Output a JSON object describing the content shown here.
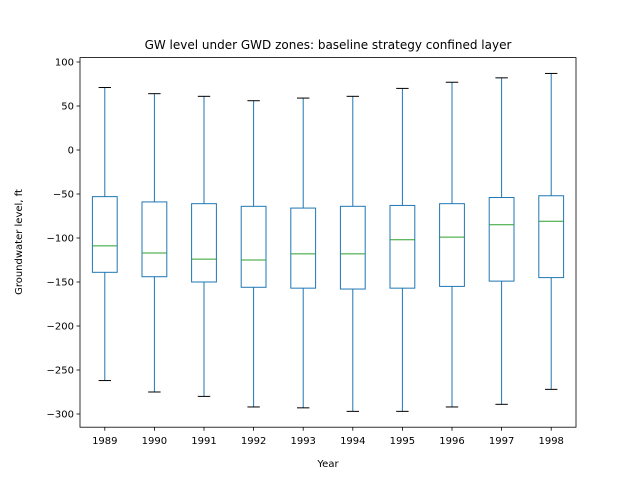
{
  "chart_data": {
    "type": "box",
    "title": "GW level under GWD zones: baseline strategy confined layer",
    "xlabel": "Year",
    "ylabel": "Groundwater level, ft",
    "ylim": [
      -315,
      105
    ],
    "yticks": [
      100,
      50,
      0,
      -50,
      -100,
      -150,
      -200,
      -250,
      -300
    ],
    "ytick_labels": [
      "100",
      "50",
      "0",
      "−50",
      "−100",
      "−150",
      "−200",
      "−250",
      "−300"
    ],
    "grid": false,
    "categories": [
      "1989",
      "1990",
      "1991",
      "1992",
      "1993",
      "1994",
      "1995",
      "1996",
      "1997",
      "1998"
    ],
    "boxes": [
      {
        "whislo": -262,
        "q1": -139,
        "med": -109,
        "q3": -53,
        "whishi": 71
      },
      {
        "whislo": -275,
        "q1": -144,
        "med": -117,
        "q3": -59,
        "whishi": 64
      },
      {
        "whislo": -280,
        "q1": -150,
        "med": -124,
        "q3": -61,
        "whishi": 61
      },
      {
        "whislo": -292,
        "q1": -156,
        "med": -125,
        "q3": -64,
        "whishi": 56
      },
      {
        "whislo": -293,
        "q1": -157,
        "med": -118,
        "q3": -66,
        "whishi": 59
      },
      {
        "whislo": -297,
        "q1": -158,
        "med": -118,
        "q3": -64,
        "whishi": 61
      },
      {
        "whislo": -297,
        "q1": -157,
        "med": -102,
        "q3": -63,
        "whishi": 70
      },
      {
        "whislo": -292,
        "q1": -155,
        "med": -99,
        "q3": -61,
        "whishi": 77
      },
      {
        "whislo": -289,
        "q1": -149,
        "med": -85,
        "q3": -54,
        "whishi": 82
      },
      {
        "whislo": -272,
        "q1": -145,
        "med": -81,
        "q3": -52,
        "whishi": 87
      }
    ],
    "colors": {
      "box": "#1f77b4",
      "median": "#2ca02c",
      "caps": "#000000",
      "axes": "#000000"
    }
  }
}
